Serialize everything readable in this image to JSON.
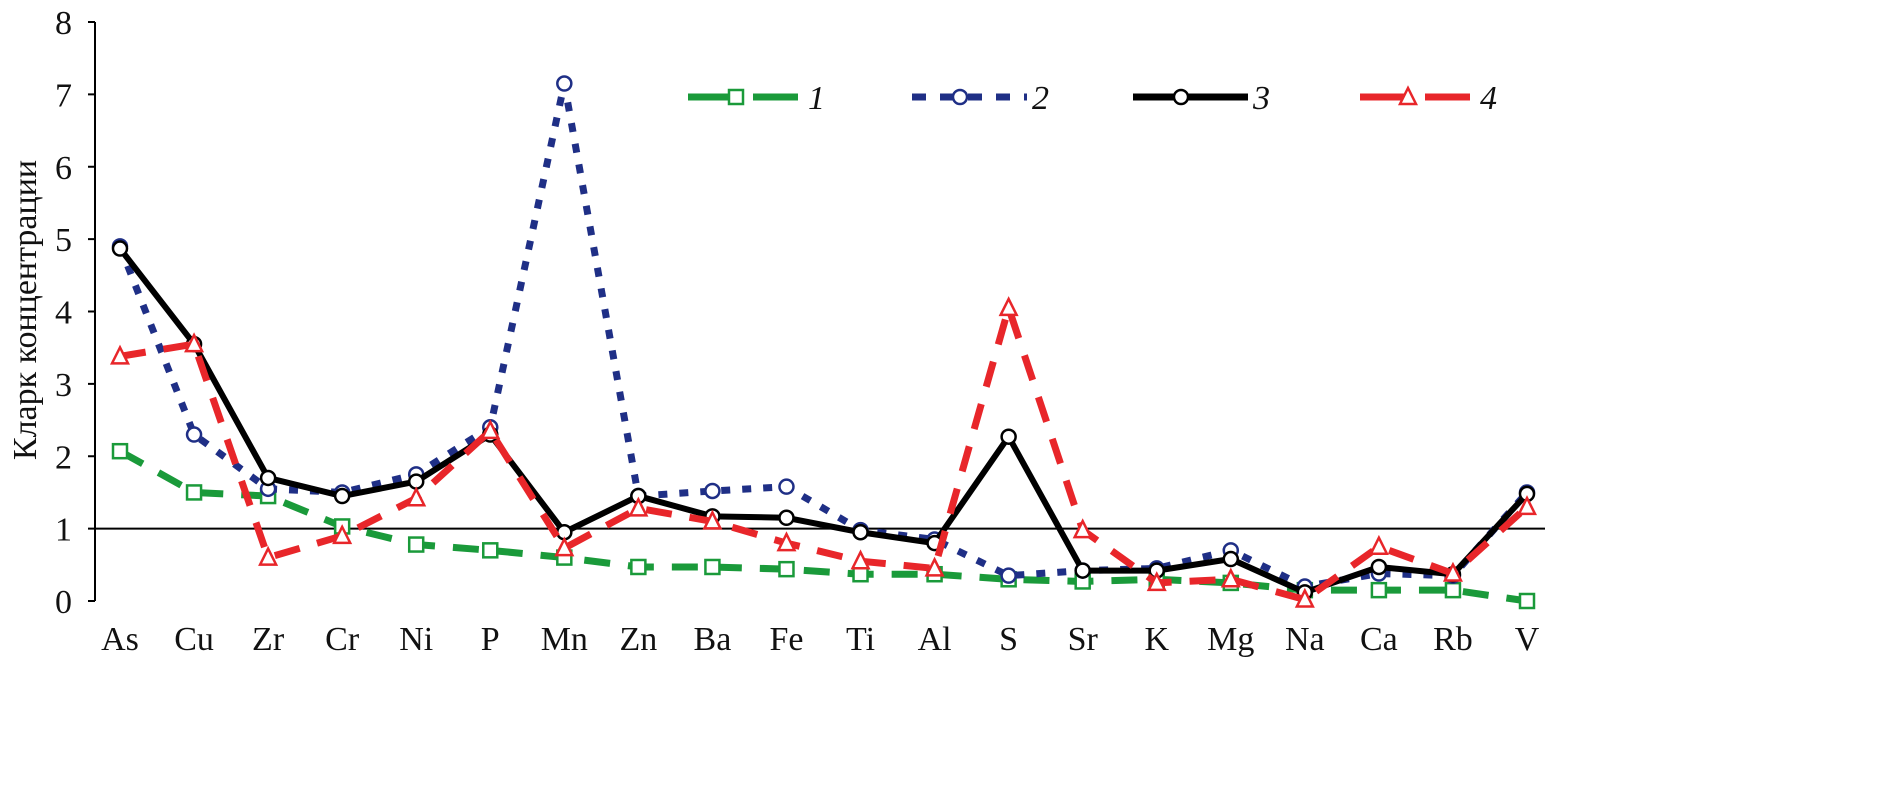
{
  "chart_data": {
    "type": "line",
    "title": "",
    "xlabel": "",
    "ylabel": "Кларк концентрации",
    "ylim": [
      0,
      8
    ],
    "yticks": [
      "0",
      "1",
      "2",
      "3",
      "4",
      "5",
      "6",
      "7",
      "8"
    ],
    "reference_line": 1,
    "grid": false,
    "legend_position": "top-right",
    "categories": [
      "As",
      "Cu",
      "Zr",
      "Cr",
      "Ni",
      "P",
      "Mn",
      "Zn",
      "Ba",
      "Fe",
      "Ti",
      "Al",
      "S",
      "Sr",
      "K",
      "Mg",
      "Na",
      "Ca",
      "Rb",
      "V"
    ],
    "series": [
      {
        "name": "1",
        "color": "#1a9a3a",
        "marker": "square",
        "dash": "dashed",
        "values": [
          2.07,
          1.5,
          1.45,
          1.03,
          0.78,
          0.7,
          0.6,
          0.47,
          0.47,
          0.44,
          0.37,
          0.37,
          0.3,
          0.27,
          0.3,
          0.25,
          0.15,
          0.15,
          0.15,
          0.0
        ]
      },
      {
        "name": "2",
        "color": "#1f2f86",
        "marker": "circle",
        "dash": "dotted",
        "values": [
          4.9,
          2.3,
          1.55,
          1.5,
          1.75,
          2.4,
          7.15,
          1.45,
          1.52,
          1.58,
          0.98,
          0.85,
          0.35,
          0.42,
          0.45,
          0.7,
          0.2,
          0.38,
          0.35,
          1.5
        ]
      },
      {
        "name": "3",
        "color": "#000000",
        "marker": "circle",
        "dash": "solid",
        "values": [
          4.87,
          3.55,
          1.7,
          1.45,
          1.65,
          2.3,
          0.95,
          1.45,
          1.17,
          1.15,
          0.95,
          0.8,
          2.27,
          0.42,
          0.42,
          0.58,
          0.12,
          0.47,
          0.37,
          1.48
        ]
      },
      {
        "name": "4",
        "color": "#e8262a",
        "marker": "triangle",
        "dash": "dashed",
        "values": [
          3.38,
          3.55,
          0.6,
          0.9,
          1.42,
          2.35,
          0.73,
          1.28,
          1.1,
          0.8,
          0.55,
          0.45,
          4.05,
          0.98,
          0.25,
          0.3,
          0.02,
          0.75,
          0.38,
          1.3
        ]
      }
    ]
  }
}
